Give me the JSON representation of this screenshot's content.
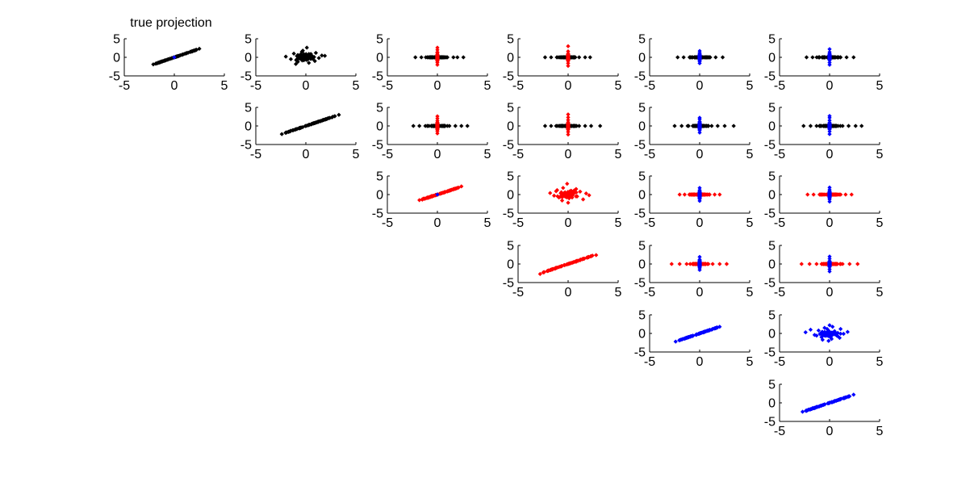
{
  "figure": {
    "title": "true projection"
  },
  "colors": {
    "black": "#000000",
    "red": "#ff0000",
    "blue": "#0000ff",
    "axis": "#000000",
    "background": "#ffffff"
  },
  "chart_data": [
    {
      "id": "p11",
      "type": "scatter",
      "row": 1,
      "col": 1,
      "title": "true projection",
      "pattern": "diagonal",
      "colors": [
        "black",
        "blue"
      ],
      "xlim": [
        -5,
        5
      ],
      "ylim": [
        -5,
        5
      ],
      "xticks": [
        "-5",
        "0",
        "5"
      ],
      "yticks": [
        "5",
        "0",
        "-5"
      ],
      "x": [
        -2.1,
        -1.7,
        -1.3,
        -1.0,
        -0.6,
        -0.2,
        0.0,
        0.4,
        0.8,
        1.2,
        1.6,
        2.1,
        2.5
      ],
      "y": [
        -1.9,
        -1.6,
        -1.2,
        -0.9,
        -0.5,
        -0.2,
        0.0,
        0.3,
        0.7,
        1.1,
        1.5,
        1.9,
        2.3
      ]
    },
    {
      "id": "p12",
      "type": "scatter",
      "row": 1,
      "col": 2,
      "pattern": "cloud",
      "colors": [
        "black"
      ],
      "xlim": [
        -5,
        5
      ],
      "ylim": [
        -5,
        5
      ],
      "xticks": [
        "-5",
        "0",
        "5"
      ],
      "yticks": [
        "5",
        "0",
        "-5"
      ],
      "x": [
        -2.0,
        -1.5,
        -1.2,
        -0.8,
        -0.6,
        -0.4,
        -0.2,
        0.0,
        0.1,
        0.3,
        0.5,
        0.7,
        1.0,
        1.3,
        1.6,
        -1.0,
        0.2,
        0.9,
        -0.3,
        1.9
      ],
      "y": [
        0.2,
        -0.5,
        1.0,
        -1.2,
        0.6,
        1.5,
        -0.8,
        0.3,
        2.6,
        -1.5,
        0.9,
        -0.4,
        1.2,
        -0.2,
        0.5,
        -1.8,
        -0.3,
        -1.0,
        1.8,
        0.4
      ]
    },
    {
      "id": "p13",
      "type": "scatter",
      "row": 1,
      "col": 3,
      "pattern": "cross",
      "colors": [
        "black",
        "red"
      ],
      "xlim": [
        -5,
        5
      ],
      "ylim": [
        -5,
        5
      ],
      "xticks": [
        "-5",
        "0",
        "5"
      ],
      "yticks": [
        "5",
        "0",
        "-5"
      ],
      "x": [
        -2.2,
        -1.6,
        -1.0,
        -0.5,
        0.5,
        1.0,
        1.6,
        2.0,
        2.6
      ],
      "y": [
        -2.0,
        -1.4,
        -0.8,
        -0.3,
        0.3,
        0.8,
        1.4,
        2.0,
        2.6
      ]
    },
    {
      "id": "p14",
      "type": "scatter",
      "row": 1,
      "col": 4,
      "pattern": "cross",
      "colors": [
        "black",
        "red"
      ],
      "xlim": [
        -5,
        5
      ],
      "ylim": [
        -5,
        5
      ],
      "xticks": [
        "-5",
        "0",
        "5"
      ],
      "yticks": [
        "5",
        "0",
        "-5"
      ],
      "x": [
        -2.3,
        -1.7,
        -1.1,
        -0.5,
        0.5,
        1.1,
        1.7,
        2.2
      ],
      "y": [
        -2.3,
        -1.6,
        -1.0,
        -0.4,
        0.4,
        1.0,
        1.6,
        3.0
      ]
    },
    {
      "id": "p15",
      "type": "scatter",
      "row": 1,
      "col": 5,
      "pattern": "cross",
      "colors": [
        "black",
        "blue"
      ],
      "xlim": [
        -5,
        5
      ],
      "ylim": [
        -5,
        5
      ],
      "xticks": [
        "-5",
        "0",
        "5"
      ],
      "yticks": [
        "5",
        "0",
        "-5"
      ],
      "x": [
        -2.2,
        -1.6,
        -1.0,
        -0.5,
        0.5,
        1.0,
        1.6,
        2.3
      ],
      "y": [
        -1.6,
        -1.1,
        -0.6,
        -0.2,
        0.3,
        0.7,
        1.2,
        1.7
      ]
    },
    {
      "id": "p16",
      "type": "scatter",
      "row": 1,
      "col": 6,
      "pattern": "cross",
      "colors": [
        "black",
        "blue"
      ],
      "xlim": [
        -5,
        5
      ],
      "ylim": [
        -5,
        5
      ],
      "xticks": [
        "-5",
        "0",
        "5"
      ],
      "yticks": [
        "5",
        "0",
        "-5"
      ],
      "x": [
        -2.3,
        -1.7,
        -1.1,
        -0.5,
        0.5,
        1.1,
        1.7,
        2.4
      ],
      "y": [
        -2.0,
        -1.4,
        -0.8,
        -0.3,
        0.3,
        0.8,
        1.4,
        2.2
      ]
    },
    {
      "id": "p22",
      "type": "scatter",
      "row": 2,
      "col": 2,
      "pattern": "diagonal",
      "colors": [
        "black"
      ],
      "xlim": [
        -5,
        5
      ],
      "ylim": [
        -5,
        5
      ],
      "xticks": [
        "-5",
        "0",
        "5"
      ],
      "yticks": [
        "5",
        "0",
        "-5"
      ],
      "x": [
        -2.4,
        -2.0,
        -1.5,
        -1.0,
        -0.5,
        0.0,
        0.5,
        1.0,
        1.5,
        2.0,
        2.6,
        3.3
      ],
      "y": [
        -2.2,
        -1.8,
        -1.3,
        -0.9,
        -0.5,
        0.0,
        0.4,
        0.9,
        1.3,
        1.8,
        2.3,
        3.0
      ]
    },
    {
      "id": "p23",
      "type": "scatter",
      "row": 2,
      "col": 3,
      "pattern": "cross",
      "colors": [
        "black",
        "red"
      ],
      "xlim": [
        -5,
        5
      ],
      "ylim": [
        -5,
        5
      ],
      "xticks": [
        "-5",
        "0",
        "5"
      ],
      "yticks": [
        "5",
        "0",
        "-5"
      ],
      "x": [
        -2.4,
        -1.8,
        -1.2,
        -0.6,
        0.6,
        1.2,
        1.8,
        2.4,
        3.0
      ],
      "y": [
        -2.0,
        -1.4,
        -0.8,
        -0.3,
        0.3,
        0.8,
        1.4,
        2.0,
        2.6
      ]
    },
    {
      "id": "p24",
      "type": "scatter",
      "row": 2,
      "col": 4,
      "pattern": "cross",
      "colors": [
        "black",
        "red"
      ],
      "xlim": [
        -5,
        5
      ],
      "ylim": [
        -5,
        5
      ],
      "xticks": [
        "-5",
        "0",
        "5"
      ],
      "yticks": [
        "5",
        "0",
        "-5"
      ],
      "x": [
        -2.3,
        -1.7,
        -1.1,
        -0.5,
        0.5,
        1.1,
        1.7,
        2.3,
        3.2
      ],
      "y": [
        -2.3,
        -1.6,
        -1.0,
        -0.4,
        0.4,
        1.0,
        1.6,
        2.3,
        3.1
      ]
    },
    {
      "id": "p25",
      "type": "scatter",
      "row": 2,
      "col": 5,
      "pattern": "cross",
      "colors": [
        "black",
        "blue"
      ],
      "xlim": [
        -5,
        5
      ],
      "ylim": [
        -5,
        5
      ],
      "xticks": [
        "-5",
        "0",
        "5"
      ],
      "yticks": [
        "5",
        "0",
        "-5"
      ],
      "x": [
        -2.5,
        -1.8,
        -1.2,
        -0.6,
        0.6,
        1.2,
        1.8,
        2.5,
        3.4
      ],
      "y": [
        -1.8,
        -1.2,
        -0.7,
        -0.3,
        0.3,
        0.7,
        1.2,
        1.8,
        2.2
      ]
    },
    {
      "id": "p26",
      "type": "scatter",
      "row": 2,
      "col": 6,
      "pattern": "cross",
      "colors": [
        "black",
        "blue"
      ],
      "xlim": [
        -5,
        5
      ],
      "ylim": [
        -5,
        5
      ],
      "xticks": [
        "-5",
        "0",
        "5"
      ],
      "yticks": [
        "5",
        "0",
        "-5"
      ],
      "x": [
        -2.6,
        -1.9,
        -1.3,
        -0.6,
        0.6,
        1.3,
        1.9,
        2.6,
        3.2
      ],
      "y": [
        -2.2,
        -1.5,
        -0.9,
        -0.4,
        0.4,
        0.9,
        1.5,
        2.2,
        2.7
      ]
    },
    {
      "id": "p33",
      "type": "scatter",
      "row": 3,
      "col": 3,
      "pattern": "diagonal",
      "colors": [
        "red",
        "blue"
      ],
      "xlim": [
        -5,
        5
      ],
      "ylim": [
        -5,
        5
      ],
      "xticks": [
        "-5",
        "0",
        "5"
      ],
      "yticks": [
        "5",
        "0",
        "-5"
      ],
      "x": [
        -1.8,
        -1.4,
        -1.0,
        -0.6,
        -0.2,
        0.0,
        0.4,
        0.8,
        1.2,
        1.6,
        2.0,
        2.4
      ],
      "y": [
        -1.5,
        -1.1,
        -0.8,
        -0.4,
        -0.1,
        0.0,
        0.4,
        0.7,
        1.1,
        1.5,
        1.8,
        2.2
      ]
    },
    {
      "id": "p34",
      "type": "scatter",
      "row": 3,
      "col": 4,
      "pattern": "cloud",
      "colors": [
        "red"
      ],
      "xlim": [
        -5,
        5
      ],
      "ylim": [
        -5,
        5
      ],
      "xticks": [
        "-5",
        "0",
        "5"
      ],
      "yticks": [
        "5",
        "0",
        "-5"
      ],
      "x": [
        -1.8,
        -1.4,
        -1.1,
        -0.8,
        -0.5,
        -0.3,
        -0.1,
        0.1,
        0.3,
        0.6,
        0.9,
        1.2,
        1.5,
        1.8,
        2.1,
        -0.6,
        0.0,
        0.8,
        -1.2,
        0.4
      ],
      "y": [
        0.4,
        -0.3,
        1.2,
        -0.6,
        1.8,
        0.6,
        2.9,
        -1.0,
        0.2,
        1.1,
        -0.5,
        0.8,
        -1.3,
        0.3,
        -0.2,
        -1.6,
        -2.2,
        1.5,
        0.9,
        -0.8
      ]
    },
    {
      "id": "p35",
      "type": "scatter",
      "row": 3,
      "col": 5,
      "pattern": "cross",
      "colors": [
        "red",
        "blue"
      ],
      "xlim": [
        -5,
        5
      ],
      "ylim": [
        -5,
        5
      ],
      "xticks": [
        "-5",
        "0",
        "5"
      ],
      "yticks": [
        "5",
        "0",
        "-5"
      ],
      "x": [
        -2.0,
        -1.5,
        -1.0,
        -0.5,
        0.5,
        1.0,
        1.5,
        2.0
      ],
      "y": [
        -1.7,
        -1.2,
        -0.7,
        -0.3,
        0.3,
        0.7,
        1.2,
        1.8
      ]
    },
    {
      "id": "p36",
      "type": "scatter",
      "row": 3,
      "col": 6,
      "pattern": "cross",
      "colors": [
        "red",
        "blue"
      ],
      "xlim": [
        -5,
        5
      ],
      "ylim": [
        -5,
        5
      ],
      "xticks": [
        "-5",
        "0",
        "5"
      ],
      "yticks": [
        "5",
        "0",
        "-5"
      ],
      "x": [
        -2.2,
        -1.6,
        -1.0,
        -0.5,
        0.5,
        1.0,
        1.6,
        2.2
      ],
      "y": [
        -1.9,
        -1.3,
        -0.8,
        -0.3,
        0.3,
        0.8,
        1.3,
        1.9
      ]
    },
    {
      "id": "p44",
      "type": "scatter",
      "row": 4,
      "col": 4,
      "pattern": "diagonal",
      "colors": [
        "red"
      ],
      "xlim": [
        -5,
        5
      ],
      "ylim": [
        -5,
        5
      ],
      "xticks": [
        "-5",
        "0",
        "5"
      ],
      "yticks": [
        "5",
        "0",
        "-5"
      ],
      "x": [
        -2.8,
        -2.0,
        -1.6,
        -1.2,
        -0.8,
        -0.4,
        0.0,
        0.4,
        0.8,
        1.2,
        1.6,
        2.0,
        2.8
      ],
      "y": [
        -2.7,
        -1.8,
        -1.4,
        -1.0,
        -0.7,
        -0.3,
        0.0,
        0.3,
        0.6,
        1.0,
        1.4,
        1.8,
        2.4
      ]
    },
    {
      "id": "p45",
      "type": "scatter",
      "row": 4,
      "col": 5,
      "pattern": "cross",
      "colors": [
        "red",
        "blue"
      ],
      "xlim": [
        -5,
        5
      ],
      "ylim": [
        -5,
        5
      ],
      "xticks": [
        "-5",
        "0",
        "5"
      ],
      "yticks": [
        "5",
        "0",
        "-5"
      ],
      "x": [
        -2.8,
        -2.0,
        -1.3,
        -0.6,
        0.6,
        1.3,
        2.0,
        2.7
      ],
      "y": [
        -1.6,
        -1.1,
        -0.6,
        -0.2,
        0.3,
        0.7,
        1.2,
        1.9
      ]
    },
    {
      "id": "p46",
      "type": "scatter",
      "row": 4,
      "col": 6,
      "pattern": "cross",
      "colors": [
        "red",
        "blue"
      ],
      "xlim": [
        -5,
        5
      ],
      "ylim": [
        -5,
        5
      ],
      "xticks": [
        "-5",
        "0",
        "5"
      ],
      "yticks": [
        "5",
        "0",
        "-5"
      ],
      "x": [
        -2.8,
        -2.0,
        -1.3,
        -0.6,
        0.6,
        1.3,
        2.0,
        2.8
      ],
      "y": [
        -2.0,
        -1.4,
        -0.8,
        -0.3,
        0.3,
        0.8,
        1.4,
        2.0
      ]
    },
    {
      "id": "p55",
      "type": "scatter",
      "row": 5,
      "col": 5,
      "pattern": "diagonal",
      "colors": [
        "blue"
      ],
      "xlim": [
        -5,
        5
      ],
      "ylim": [
        -5,
        5
      ],
      "xticks": [
        "-5",
        "0",
        "5"
      ],
      "yticks": [
        "5",
        "0",
        "-5"
      ],
      "x": [
        -2.4,
        -1.9,
        -1.5,
        -1.1,
        -0.7,
        -0.3,
        0.0,
        0.4,
        0.8,
        1.2,
        1.6,
        2.0
      ],
      "y": [
        -2.2,
        -1.7,
        -1.4,
        -1.0,
        -0.7,
        -0.3,
        0.0,
        0.3,
        0.7,
        1.0,
        1.4,
        1.8
      ]
    },
    {
      "id": "p56",
      "type": "scatter",
      "row": 5,
      "col": 6,
      "pattern": "cloud",
      "colors": [
        "blue"
      ],
      "xlim": [
        -5,
        5
      ],
      "ylim": [
        -5,
        5
      ],
      "xticks": [
        "-5",
        "0",
        "5"
      ],
      "yticks": [
        "5",
        "0",
        "-5"
      ],
      "x": [
        -2.4,
        -1.9,
        -1.5,
        -1.1,
        -0.8,
        -0.5,
        -0.2,
        0.0,
        0.2,
        0.5,
        0.8,
        1.1,
        1.4,
        1.8,
        -0.7,
        0.3,
        1.0,
        -1.3,
        0.6,
        -0.1
      ],
      "y": [
        0.3,
        1.0,
        -0.4,
        0.8,
        -1.0,
        1.5,
        -0.2,
        2.2,
        -1.5,
        0.6,
        -0.7,
        1.2,
        -0.1,
        0.4,
        -1.7,
        1.8,
        -1.2,
        -0.6,
        0.1,
        -2.0
      ]
    },
    {
      "id": "p66",
      "type": "scatter",
      "row": 6,
      "col": 6,
      "pattern": "diagonal",
      "colors": [
        "blue"
      ],
      "xlim": [
        -5,
        5
      ],
      "ylim": [
        -5,
        5
      ],
      "xticks": [
        "-5",
        "0",
        "5"
      ],
      "yticks": [
        "5",
        "0",
        "-5"
      ],
      "x": [
        -2.7,
        -2.1,
        -1.7,
        -1.3,
        -0.9,
        -0.5,
        -0.1,
        0.3,
        0.7,
        1.1,
        1.5,
        1.9,
        2.4
      ],
      "y": [
        -2.4,
        -1.8,
        -1.4,
        -1.1,
        -0.8,
        -0.4,
        -0.1,
        0.2,
        0.6,
        1.0,
        1.3,
        1.7,
        2.2
      ]
    }
  ]
}
